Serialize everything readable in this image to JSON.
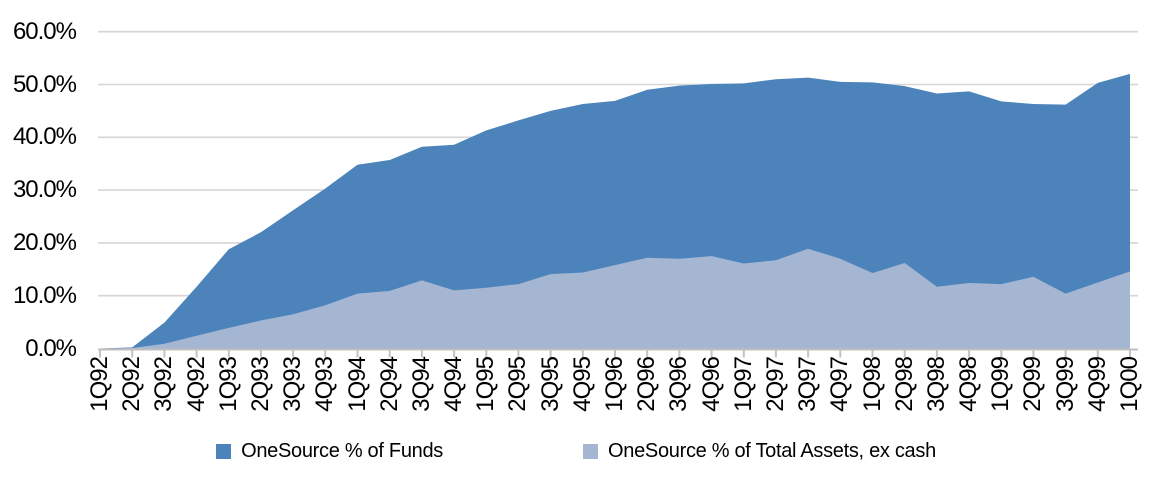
{
  "chart": {
    "background": "#ffffff",
    "gridline_color": "#d6d6d6",
    "axis_color": "#bfbfbf",
    "tick_color": "#c3c3c3",
    "text_color": "#000000"
  },
  "chart_data": {
    "type": "area",
    "title": "",
    "xlabel": "",
    "ylabel": "",
    "grid": "horizontal",
    "legend_position": "bottom",
    "overlapping_series": true,
    "categories": [
      "1Q92",
      "2Q92",
      "3Q92",
      "4Q92",
      "1Q93",
      "2Q93",
      "3Q93",
      "4Q93",
      "1Q94",
      "2Q94",
      "3Q94",
      "4Q94",
      "1Q95",
      "2Q95",
      "3Q95",
      "4Q95",
      "1Q96",
      "2Q96",
      "3Q96",
      "4Q96",
      "1Q97",
      "2Q97",
      "3Q97",
      "4Q97",
      "1Q98",
      "2Q98",
      "3Q98",
      "4Q98",
      "1Q99",
      "2Q99",
      "3Q99",
      "4Q99",
      "1Q00"
    ],
    "series": [
      {
        "name": "OneSource % of Funds",
        "color": "#4c83bb",
        "values": [
          0,
          0.2,
          4.9,
          11.7,
          18.8,
          22.0,
          26.2,
          30.3,
          34.8,
          35.7,
          38.2,
          38.6,
          41.3,
          43.2,
          45.0,
          46.3,
          46.9,
          49.0,
          49.8,
          50.1,
          50.2,
          51.0,
          51.3,
          50.5,
          50.4,
          49.7,
          48.3,
          48.7,
          46.8,
          46.3,
          46.2,
          50.3,
          52.0
        ]
      },
      {
        "name": "OneSource % of Total Assets, ex cash",
        "color": "#a5b6d2",
        "values": [
          0,
          0.1,
          0.9,
          2.4,
          3.9,
          5.3,
          6.5,
          8.2,
          10.4,
          10.9,
          12.9,
          11.0,
          11.5,
          12.2,
          14.1,
          14.4,
          15.8,
          17.2,
          17.0,
          17.5,
          16.1,
          16.7,
          18.9,
          17.0,
          14.3,
          16.2,
          11.7,
          12.4,
          12.2,
          13.6,
          10.4,
          12.5,
          14.6
        ]
      }
    ],
    "y_axis": {
      "min": 0,
      "max": 60,
      "tick_step": 10,
      "tick_labels": [
        "0.0%",
        "10.0%",
        "20.0%",
        "30.0%",
        "40.0%",
        "50.0%",
        "60.0%"
      ]
    },
    "x_axis": {
      "label_rotation": -90
    }
  }
}
